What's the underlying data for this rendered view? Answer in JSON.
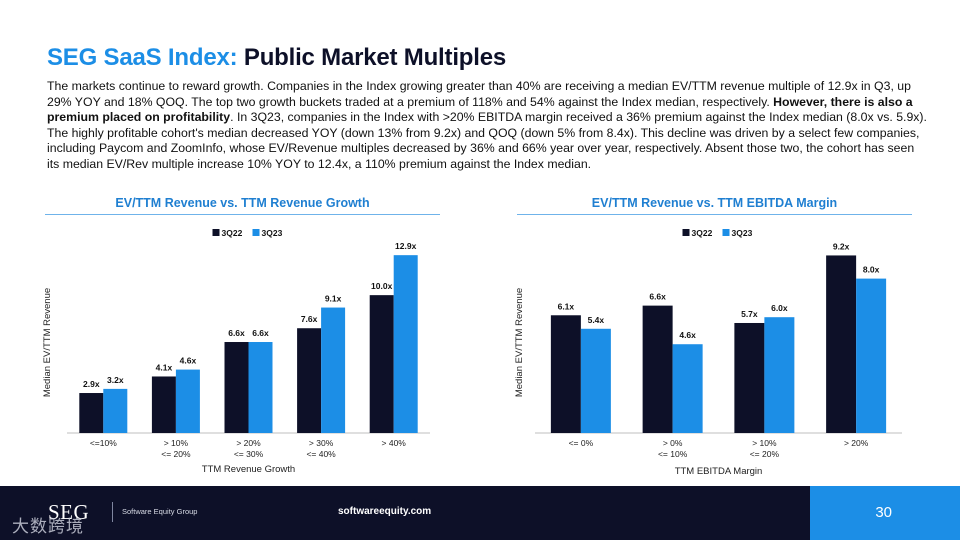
{
  "header": {
    "title_accent": "SEG SaaS Index:",
    "title_rest": "Public Market Multiples"
  },
  "body": {
    "text_1": "The markets continue to reward growth. Companies in the Index growing greater than 40% are receiving a median EV/TTM revenue multiple of 12.9x in Q3, up 29% YOY and 18% QOQ. The top two growth buckets traded at a premium of 118% and 54% against the Index median, respectively. ",
    "text_bold": "However, there is also a premium placed on profitability",
    "text_2": ". In 3Q23, companies in the Index with >20% EBITDA margin received a 36% premium against the Index median (8.0x vs. 5.9x). The highly profitable cohort's median decreased YOY (down 13% from 9.2x) and QOQ (down 5% from 8.4x). This decline was driven by a select few companies, including Paycom and ZoomInfo, whose EV/Revenue multiples decreased by 36% and 66% year over year, respectively. Absent those two, the cohort has seen its median EV/Rev multiple increase 10% YOY to 12.4x, a 110% premium against the Index median."
  },
  "colors": {
    "accent": "#1c8ee6",
    "navy": "#0d1028",
    "series_3q22": "#0d1028",
    "series_3q23": "#1c8ee6"
  },
  "chart_data": [
    {
      "type": "bar",
      "title": "EV/TTM Revenue vs. TTM Revenue Growth",
      "xlabel": "TTM Revenue Growth",
      "ylabel": "Median EV/TTM Revenue",
      "categories": [
        [
          "<=10%"
        ],
        [
          "> 10%",
          "<= 20%"
        ],
        [
          "> 20%",
          "<= 30%"
        ],
        [
          "> 30%",
          "<= 40%"
        ],
        [
          "> 40%"
        ]
      ],
      "series": [
        {
          "name": "3Q22",
          "values": [
            2.9,
            4.1,
            6.6,
            7.6,
            10.0
          ],
          "labels": [
            "2.9x",
            "4.1x",
            "6.6x",
            "7.6x",
            "10.0x"
          ]
        },
        {
          "name": "3Q23",
          "values": [
            3.2,
            4.6,
            6.6,
            9.1,
            12.9
          ],
          "labels": [
            "3.2x",
            "4.6x",
            "6.6x",
            "9.1x",
            "12.9x"
          ]
        }
      ],
      "ylim": [
        0,
        14
      ],
      "grid": false,
      "legend": "top-center"
    },
    {
      "type": "bar",
      "title": "EV/TTM Revenue vs. TTM EBITDA Margin",
      "xlabel": "TTM EBITDA Margin",
      "ylabel": "Median EV/TTM Revenue",
      "categories": [
        [
          "<= 0%"
        ],
        [
          "> 0%",
          "<= 10%"
        ],
        [
          "> 10%",
          "<= 20%"
        ],
        [
          "> 20%"
        ]
      ],
      "series": [
        {
          "name": "3Q22",
          "values": [
            6.1,
            6.6,
            5.7,
            9.2
          ],
          "labels": [
            "6.1x",
            "6.6x",
            "5.7x",
            "9.2x"
          ]
        },
        {
          "name": "3Q23",
          "values": [
            5.4,
            4.6,
            6.0,
            8.0
          ],
          "labels": [
            "5.4x",
            "4.6x",
            "6.0x",
            "8.0x"
          ]
        }
      ],
      "ylim": [
        0,
        10
      ],
      "grid": false,
      "legend": "top-center"
    }
  ],
  "footer": {
    "logo": "SEG",
    "company": "Software Equity Group",
    "site": "softwareequity.com",
    "page_number": "30",
    "watermark": "大数跨境"
  }
}
